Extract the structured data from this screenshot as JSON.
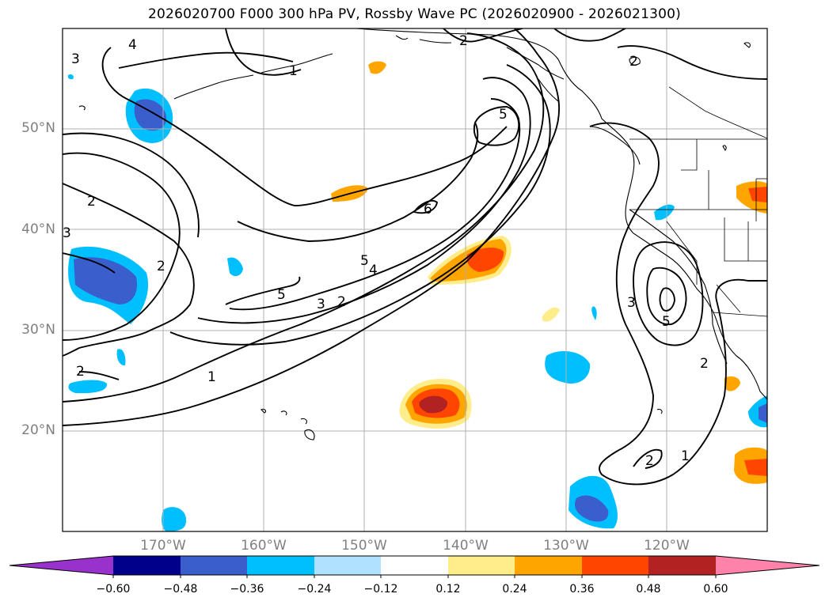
{
  "title": "2026020700 F000 300 hPa PV, Rossby Wave PC (2026020900 - 2026021300)",
  "lat_labels": [
    "50°N",
    "40°N",
    "30°N",
    "20°N"
  ],
  "lon_labels": [
    "170°W",
    "160°W",
    "150°W",
    "140°W",
    "130°W",
    "120°W"
  ],
  "contour_labels": [
    "4",
    "3",
    "1",
    "2",
    "2",
    "3",
    "2",
    "2",
    "5",
    "6",
    "5",
    "4",
    "3",
    "2",
    "5",
    "1",
    "2",
    "3",
    "5",
    "2",
    "1",
    "2"
  ],
  "colorbar": {
    "colors": [
      "#9932CC",
      "#00008B",
      "#3A5FCD",
      "#00BFFF",
      "#B0E2FF",
      "#FFFFFF",
      "#FFEC8B",
      "#FFA500",
      "#FF4500",
      "#B22222",
      "#FF82AB"
    ],
    "ticks": [
      "−0.60",
      "−0.48",
      "−0.36",
      "−0.24",
      "−0.12",
      "0.12",
      "0.24",
      "0.36",
      "0.48",
      "0.60"
    ]
  }
}
